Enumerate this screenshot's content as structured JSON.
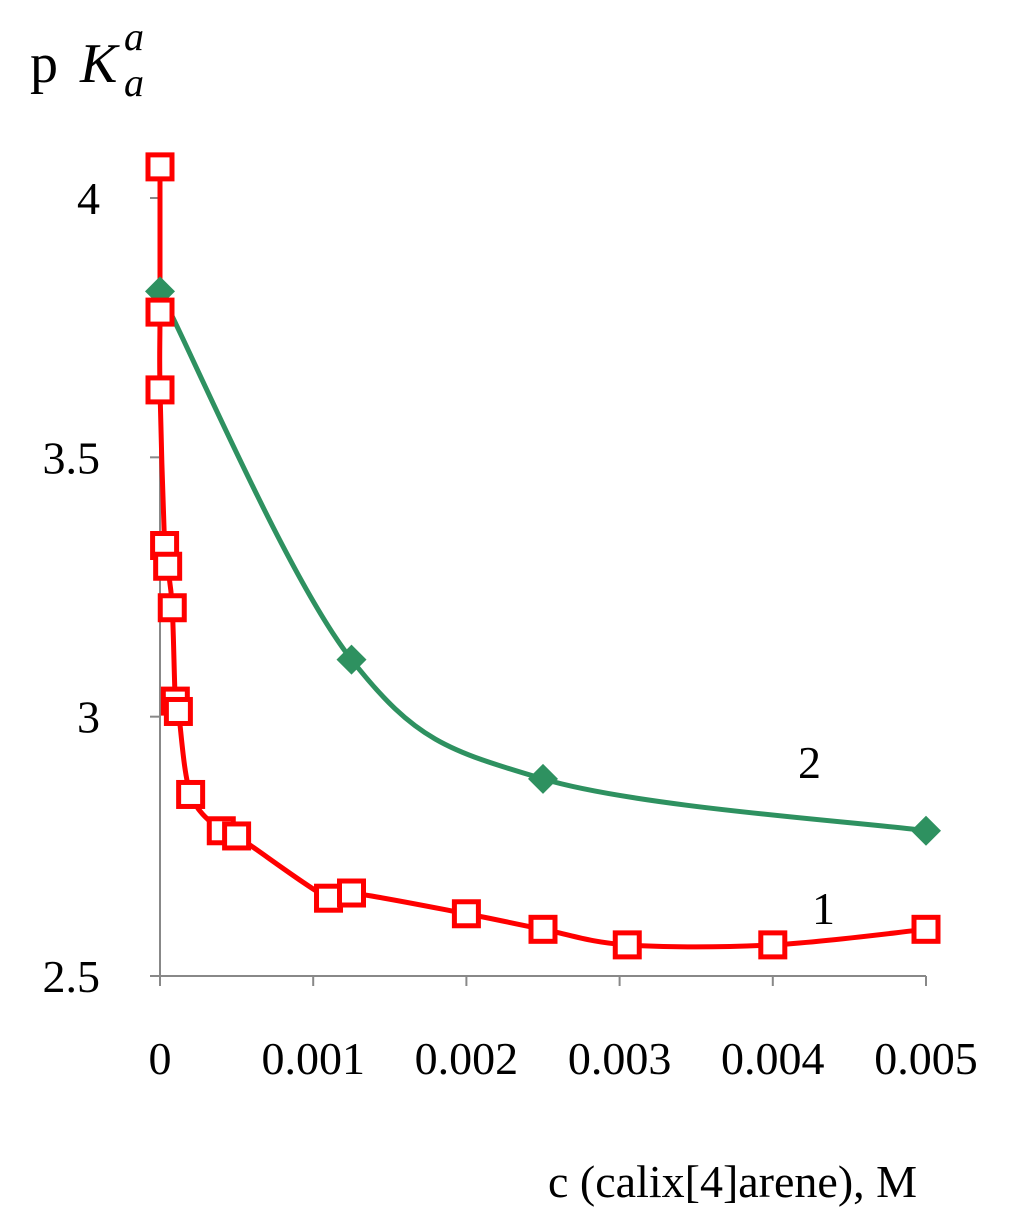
{
  "chart_data": {
    "type": "line",
    "title": "",
    "ylabel": {
      "base": "p",
      "main": "K",
      "sup": "a",
      "sub": "a"
    },
    "xlabel": "c (calix[4]arene), M",
    "xlim": [
      0,
      0.005
    ],
    "ylim": [
      2.5,
      4.1
    ],
    "x_ticks": [
      0,
      0.001,
      0.002,
      0.003,
      0.004,
      0.005
    ],
    "x_tick_labels": [
      "0",
      "0.001",
      "0.002",
      "0.003",
      "0.004",
      "0.005"
    ],
    "y_ticks": [
      2.5,
      3,
      3.5,
      4
    ],
    "y_tick_labels": [
      "2.5",
      "3",
      "3.5",
      "4"
    ],
    "grid": false,
    "legend": "none",
    "series": [
      {
        "label": "1",
        "color": "#ff0000",
        "marker": "open-square",
        "points": [
          [
            0.0,
            4.06
          ],
          [
            0.0,
            3.78
          ],
          [
            0.0,
            3.63
          ],
          [
            3e-05,
            3.33
          ],
          [
            5e-05,
            3.29
          ],
          [
            8e-05,
            3.21
          ],
          [
            0.0001,
            3.03
          ],
          [
            0.00012,
            3.01
          ],
          [
            0.0002,
            2.85
          ],
          [
            0.0004,
            2.78
          ],
          [
            0.0005,
            2.77
          ],
          [
            0.0011,
            2.65
          ],
          [
            0.00125,
            2.66
          ],
          [
            0.002,
            2.62
          ],
          [
            0.0025,
            2.59
          ],
          [
            0.00305,
            2.56
          ],
          [
            0.004,
            2.56
          ],
          [
            0.005,
            2.59
          ]
        ]
      },
      {
        "label": "2",
        "color": "#2e9160",
        "marker": "filled-diamond",
        "points": [
          [
            0.0,
            3.82
          ],
          [
            0.00125,
            3.11
          ],
          [
            0.0025,
            2.88
          ],
          [
            0.005,
            2.78
          ]
        ]
      }
    ]
  }
}
